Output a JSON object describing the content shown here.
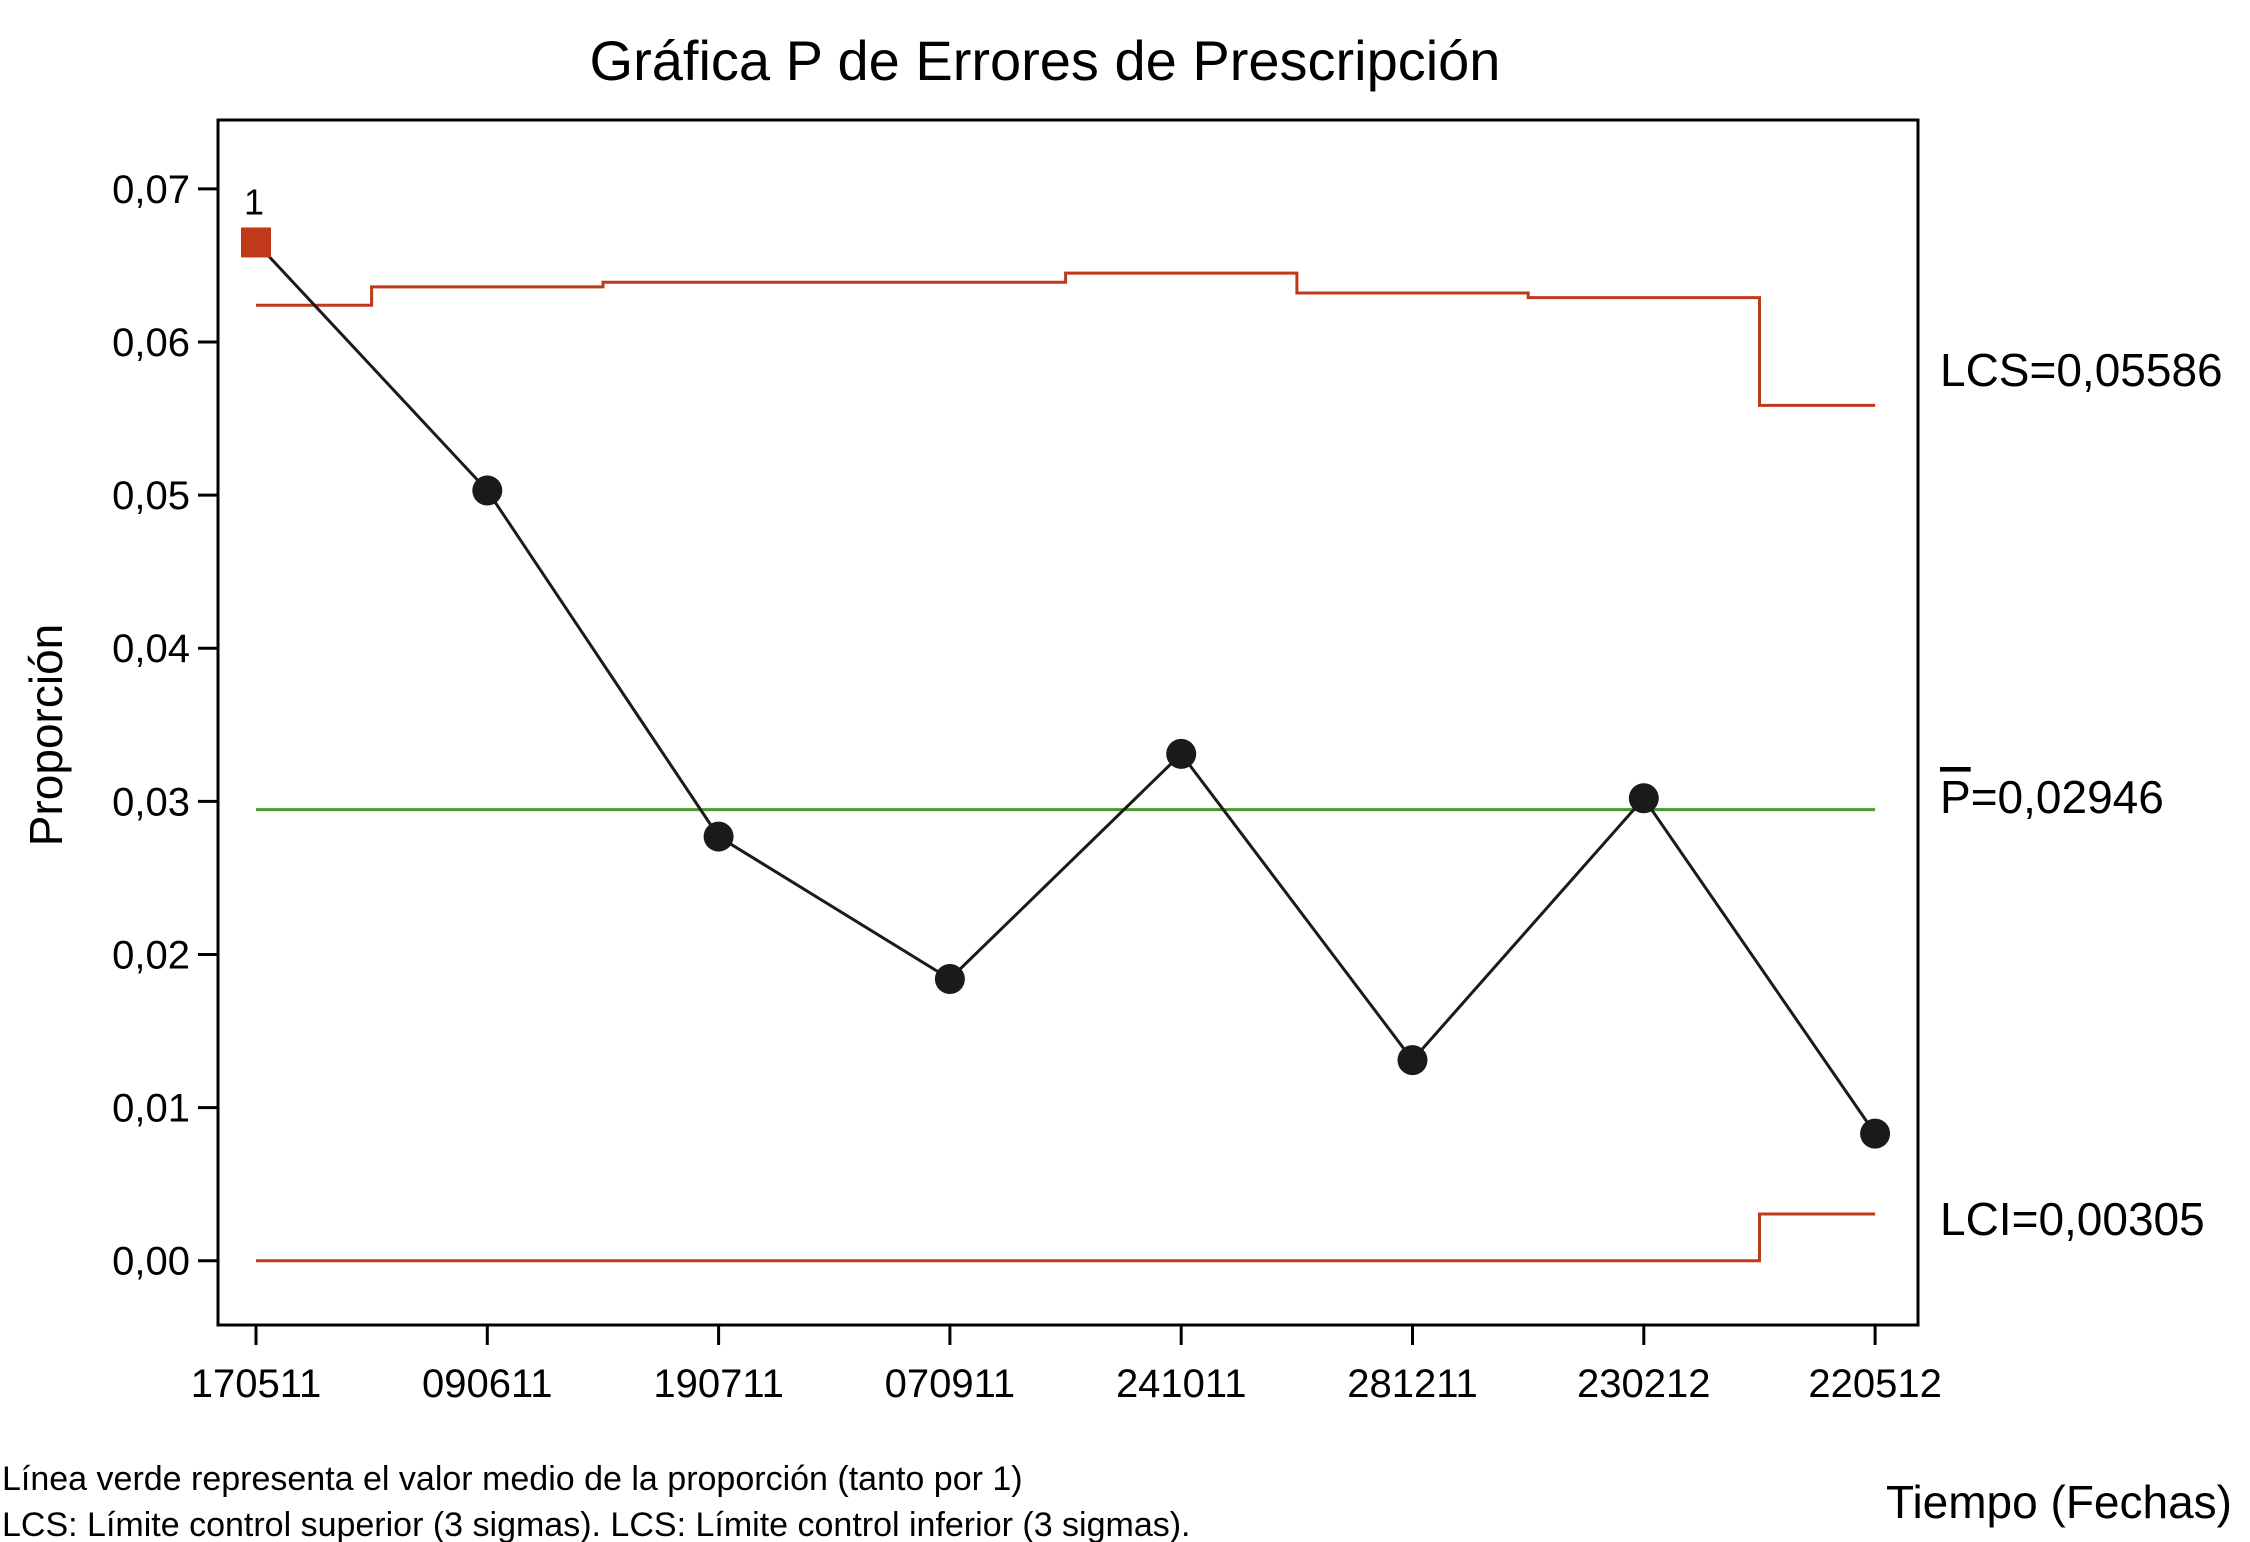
{
  "chart_data": {
    "type": "line",
    "title": "Gráfica P de Errores de Prescripción",
    "xlabel": "Tiempo (Fechas)",
    "ylabel": "Proporción",
    "categories": [
      "170511",
      "090611",
      "190711",
      "070911",
      "241011",
      "281211",
      "230212",
      "220512"
    ],
    "ylim": [
      -0.0042,
      0.0745
    ],
    "yticks": [
      0.0,
      0.01,
      0.02,
      0.03,
      0.04,
      0.05,
      0.06,
      0.07
    ],
    "ytick_labels": [
      "0,00",
      "0,01",
      "0,02",
      "0,03",
      "0,04",
      "0,05",
      "0,06",
      "0,07"
    ],
    "series": [
      {
        "values": [
          0.0665,
          0.0503,
          0.0277,
          0.0184,
          0.0331,
          0.0131,
          0.0302,
          0.0083
        ],
        "color": "#1a1a1a"
      }
    ],
    "out_of_control": [
      {
        "index": 0,
        "label": "1",
        "color": "#c0391b"
      }
    ],
    "ucl_steps": [
      {
        "from": 0.0,
        "to": 0.5,
        "value": 0.0624
      },
      {
        "from": 0.5,
        "to": 1.5,
        "value": 0.0636
      },
      {
        "from": 1.5,
        "to": 3.5,
        "value": 0.0639
      },
      {
        "from": 3.5,
        "to": 4.5,
        "value": 0.0645
      },
      {
        "from": 4.5,
        "to": 5.5,
        "value": 0.0632
      },
      {
        "from": 5.5,
        "to": 6.5,
        "value": 0.0629
      },
      {
        "from": 6.5,
        "to": 7.0,
        "value": 0.05586
      }
    ],
    "lcl_steps": [
      {
        "from": 0.0,
        "to": 6.5,
        "value": 0.0
      },
      {
        "from": 6.5,
        "to": 7.0,
        "value": 0.00305
      }
    ],
    "center_value": 0.02946,
    "limit_color": "#c0391b",
    "center_color": "#4a9a2e",
    "labels": {
      "ucl": "LCS=0,05586",
      "center_prefix": "P",
      "center": "=0,02946",
      "lcl": "LCI=0,00305"
    },
    "grid": false,
    "legend": "none"
  },
  "footnotes": [
    "Línea verde representa el valor medio de la proporción (tanto por 1)",
    "LCS: Límite control superior (3 sigmas). LCS: Límite control inferior (3 sigmas)."
  ]
}
